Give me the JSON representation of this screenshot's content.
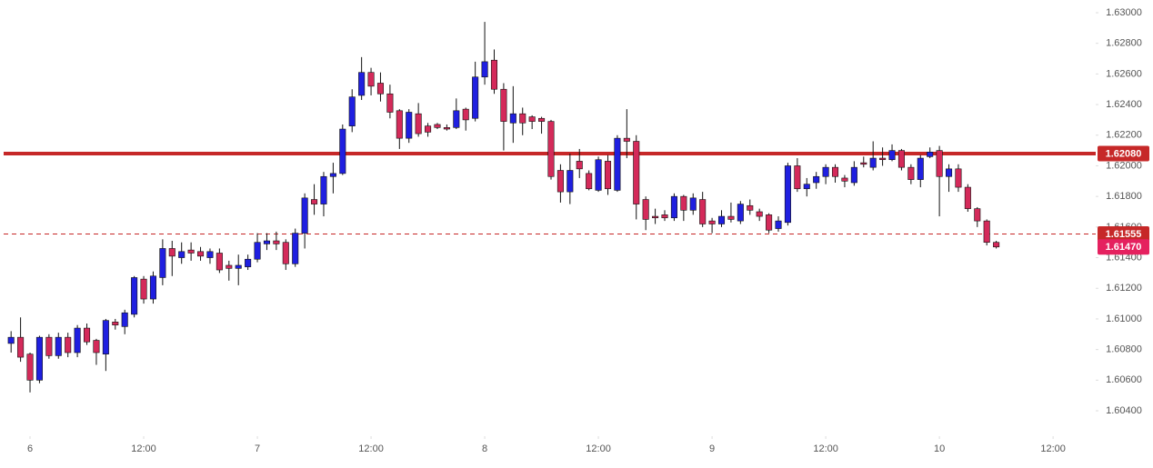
{
  "chart_data": {
    "type": "candlestick",
    "up_color": "#1f1fe0",
    "down_color": "#d42a5a",
    "x": [
      -2,
      -1,
      0,
      1,
      2,
      3,
      4,
      5,
      6,
      7,
      8,
      9,
      10,
      11,
      12,
      13,
      14,
      15,
      16,
      17,
      18,
      19,
      20,
      21,
      22,
      23,
      24,
      25,
      26,
      27,
      28,
      29,
      30,
      31,
      32,
      33,
      34,
      35,
      36,
      37,
      38,
      39,
      40,
      41,
      42,
      43,
      44,
      45,
      46,
      47,
      48,
      49,
      50,
      51,
      52,
      53,
      54,
      55,
      56,
      57,
      58,
      59,
      60,
      61,
      62,
      63,
      64,
      65,
      66,
      67,
      68,
      69,
      70,
      71,
      72,
      73,
      74,
      75,
      76,
      77,
      78,
      79,
      80,
      81,
      82,
      83,
      84,
      85,
      86,
      87,
      88,
      89,
      90,
      91,
      92,
      93,
      94,
      95,
      96,
      97,
      98,
      99,
      100,
      101,
      102
    ],
    "open": [
      1.6084,
      1.6088,
      1.6077,
      1.606,
      1.6088,
      1.6076,
      1.6088,
      1.6078,
      1.6094,
      1.6086,
      1.6077,
      1.6098,
      1.6095,
      1.6103,
      1.6126,
      1.6113,
      1.6127,
      1.6146,
      1.614,
      1.6145,
      1.6144,
      1.614,
      1.6143,
      1.6135,
      1.6133,
      1.6134,
      1.6139,
      1.6149,
      1.6151,
      1.615,
      1.6136,
      1.6156,
      1.6178,
      1.6175,
      1.6193,
      1.6195,
      1.6226,
      1.6246,
      1.6261,
      1.6254,
      1.6247,
      1.6236,
      1.6218,
      1.6234,
      1.6226,
      1.6227,
      1.6225,
      1.6225,
      1.6237,
      1.6231,
      1.6258,
      1.6269,
      1.625,
      1.6228,
      1.6234,
      1.6232,
      1.6231,
      1.6229,
      1.6197,
      1.6183,
      1.6203,
      1.6195,
      1.6184,
      1.6203,
      1.6184,
      1.6218,
      1.6216,
      1.6178,
      1.6167,
      1.6168,
      1.6166,
      1.618,
      1.6171,
      1.6178,
      1.6164,
      1.6162,
      1.6167,
      1.6164,
      1.6174,
      1.617,
      1.6168,
      1.6159,
      1.6163,
      1.62,
      1.6185,
      1.6189,
      1.6193,
      1.6199,
      1.6192,
      1.6189,
      1.6202,
      1.6199,
      1.6205,
      1.6204,
      1.621,
      1.6199,
      1.6191,
      1.6206,
      1.621,
      1.6193,
      1.6198,
      1.6186,
      1.6172,
      1.6164,
      1.615
    ],
    "high": [
      1.6092,
      1.6101,
      1.6078,
      1.6089,
      1.609,
      1.6091,
      1.6091,
      1.6096,
      1.6097,
      1.6087,
      1.61,
      1.61,
      1.6106,
      1.6128,
      1.6128,
      1.6131,
      1.6152,
      1.6151,
      1.615,
      1.615,
      1.6147,
      1.6146,
      1.6146,
      1.6138,
      1.6142,
      1.6142,
      1.6156,
      1.6156,
      1.6157,
      1.6152,
      1.6159,
      1.6182,
      1.6188,
      1.6196,
      1.6202,
      1.6227,
      1.625,
      1.6271,
      1.6264,
      1.6261,
      1.6253,
      1.6237,
      1.6237,
      1.6241,
      1.6228,
      1.6228,
      1.6227,
      1.6244,
      1.6238,
      1.6268,
      1.6294,
      1.6276,
      1.6254,
      1.6252,
      1.6238,
      1.6233,
      1.6232,
      1.623,
      1.6201,
      1.6208,
      1.6211,
      1.6197,
      1.6206,
      1.6207,
      1.622,
      1.6237,
      1.622,
      1.618,
      1.6172,
      1.6171,
      1.6182,
      1.6181,
      1.6182,
      1.6183,
      1.6166,
      1.6171,
      1.6176,
      1.6177,
      1.6178,
      1.6172,
      1.6169,
      1.6167,
      1.6202,
      1.6205,
      1.6192,
      1.6196,
      1.6201,
      1.6201,
      1.6194,
      1.6203,
      1.6206,
      1.6216,
      1.6212,
      1.6214,
      1.6211,
      1.6201,
      1.6207,
      1.6212,
      1.6213,
      1.6201,
      1.6201,
      1.6188,
      1.6173,
      1.6165,
      1.6151
    ],
    "low": [
      1.6078,
      1.6072,
      1.6052,
      1.6058,
      1.6074,
      1.6074,
      1.6075,
      1.6075,
      1.6083,
      1.607,
      1.6066,
      1.6093,
      1.609,
      1.6101,
      1.611,
      1.611,
      1.6122,
      1.6128,
      1.6136,
      1.6138,
      1.6138,
      1.6136,
      1.613,
      1.6125,
      1.6122,
      1.6132,
      1.6137,
      1.6145,
      1.6145,
      1.6132,
      1.6134,
      1.6146,
      1.6168,
      1.6167,
      1.6182,
      1.6194,
      1.6222,
      1.6243,
      1.6246,
      1.6242,
      1.6231,
      1.6211,
      1.6215,
      1.6219,
      1.6219,
      1.6224,
      1.6223,
      1.6224,
      1.6223,
      1.6229,
      1.6253,
      1.6247,
      1.621,
      1.6215,
      1.622,
      1.6224,
      1.6221,
      1.6191,
      1.6176,
      1.6175,
      1.6192,
      1.6184,
      1.6183,
      1.6181,
      1.6183,
      1.6205,
      1.6165,
      1.6158,
      1.6162,
      1.6164,
      1.6164,
      1.6164,
      1.6168,
      1.616,
      1.6156,
      1.616,
      1.6163,
      1.6162,
      1.6168,
      1.6164,
      1.6156,
      1.6157,
      1.6161,
      1.6183,
      1.618,
      1.6185,
      1.6188,
      1.6189,
      1.6186,
      1.6187,
      1.6199,
      1.6197,
      1.62,
      1.6203,
      1.6197,
      1.6188,
      1.6186,
      1.6205,
      1.6167,
      1.6183,
      1.6183,
      1.617,
      1.616,
      1.6148,
      1.6146
    ],
    "close": [
      1.6088,
      1.6075,
      1.606,
      1.6088,
      1.6076,
      1.6088,
      1.6078,
      1.6094,
      1.6085,
      1.6078,
      1.6099,
      1.6096,
      1.6104,
      1.6127,
      1.6113,
      1.6128,
      1.6146,
      1.6141,
      1.6144,
      1.6143,
      1.6141,
      1.6144,
      1.6132,
      1.6133,
      1.6135,
      1.6139,
      1.615,
      1.6151,
      1.6149,
      1.6136,
      1.6156,
      1.6179,
      1.6175,
      1.6193,
      1.6195,
      1.6224,
      1.6245,
      1.6261,
      1.6252,
      1.6247,
      1.6235,
      1.6218,
      1.6235,
      1.6221,
      1.6222,
      1.6225,
      1.6224,
      1.6236,
      1.623,
      1.6258,
      1.6268,
      1.625,
      1.6229,
      1.6234,
      1.6228,
      1.6229,
      1.6229,
      1.6193,
      1.6183,
      1.6197,
      1.6198,
      1.6185,
      1.6204,
      1.6185,
      1.6218,
      1.6216,
      1.6175,
      1.6165,
      1.6166,
      1.6166,
      1.618,
      1.6171,
      1.6179,
      1.6162,
      1.6162,
      1.6167,
      1.6165,
      1.6175,
      1.6171,
      1.6167,
      1.6158,
      1.6164,
      1.62,
      1.6185,
      1.6188,
      1.6193,
      1.6199,
      1.6193,
      1.619,
      1.6199,
      1.6201,
      1.6205,
      1.6204,
      1.621,
      1.6199,
      1.6191,
      1.6205,
      1.6209,
      1.6193,
      1.6198,
      1.6186,
      1.6172,
      1.6164,
      1.615,
      1.6147
    ],
    "xlim": [
      -3.17,
      112.5
    ],
    "xticks": [
      {
        "value": 0,
        "label": "6"
      },
      {
        "value": 12,
        "label": "12:00"
      },
      {
        "value": 24,
        "label": "7"
      },
      {
        "value": 36,
        "label": "12:00"
      },
      {
        "value": 48,
        "label": "8"
      },
      {
        "value": 60,
        "label": "12:00"
      },
      {
        "value": 72,
        "label": "9"
      },
      {
        "value": 84,
        "label": "12:00"
      },
      {
        "value": 96,
        "label": "10"
      },
      {
        "value": 108,
        "label": "12:00"
      }
    ],
    "ylim": [
      1.60234,
      1.63083
    ],
    "yticks": [
      {
        "value": 1.604,
        "label": "1.60400"
      },
      {
        "value": 1.606,
        "label": "1.60600"
      },
      {
        "value": 1.608,
        "label": "1.60800"
      },
      {
        "value": 1.61,
        "label": "1.61000"
      },
      {
        "value": 1.612,
        "label": "1.61200"
      },
      {
        "value": 1.614,
        "label": "1.61400"
      },
      {
        "value": 1.616,
        "label": "1.61600"
      },
      {
        "value": 1.618,
        "label": "1.61800"
      },
      {
        "value": 1.62,
        "label": "1.62000"
      },
      {
        "value": 1.622,
        "label": "1.62200"
      },
      {
        "value": 1.624,
        "label": "1.62400"
      },
      {
        "value": 1.626,
        "label": "1.62600"
      },
      {
        "value": 1.628,
        "label": "1.62800"
      },
      {
        "value": 1.63,
        "label": "1.63000"
      }
    ],
    "price_lines": [
      {
        "value": 1.6208,
        "label": "1.62080",
        "color": "#c62828",
        "style": "solid"
      },
      {
        "value": 1.61555,
        "label": "1.61555",
        "color": "#c62828",
        "style": "dashed"
      },
      {
        "value": 1.6147,
        "label": "1.61470",
        "color": "#e5215f",
        "style": "none"
      }
    ]
  }
}
